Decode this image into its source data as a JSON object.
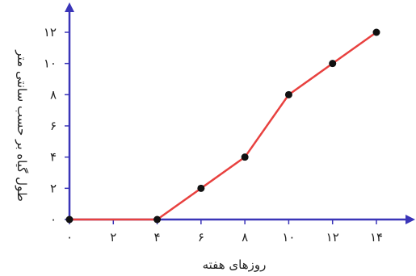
{
  "chart_data": {
    "type": "line",
    "title": "",
    "xlabel": "روزهای هفته",
    "ylabel": "طول گیاه بر حسب سانتی متر",
    "xlim": [
      0,
      14
    ],
    "ylim": [
      0,
      12
    ],
    "x_ticks": [
      0,
      2,
      4,
      6,
      8,
      10,
      12,
      14
    ],
    "x_tick_labels": [
      "۰",
      "۲",
      "۴",
      "۶",
      "۸",
      "۱۰",
      "۱۲",
      "۱۴"
    ],
    "y_ticks": [
      0,
      2,
      4,
      6,
      8,
      10,
      12
    ],
    "y_tick_labels": [
      "۰",
      "۲",
      "۴",
      "۶",
      "۸",
      "۱۰",
      "۱۲"
    ],
    "grid": false,
    "colors": {
      "axis": "#3a35b8",
      "line": "#e8413f",
      "point": "#111111"
    },
    "series": [
      {
        "points": [
          {
            "x": 0,
            "y": 0
          },
          {
            "x": 4,
            "y": 0
          },
          {
            "x": 6,
            "y": 2
          },
          {
            "x": 8,
            "y": 4
          },
          {
            "x": 10,
            "y": 8
          },
          {
            "x": 12,
            "y": 10
          },
          {
            "x": 14,
            "y": 12
          }
        ]
      }
    ]
  }
}
